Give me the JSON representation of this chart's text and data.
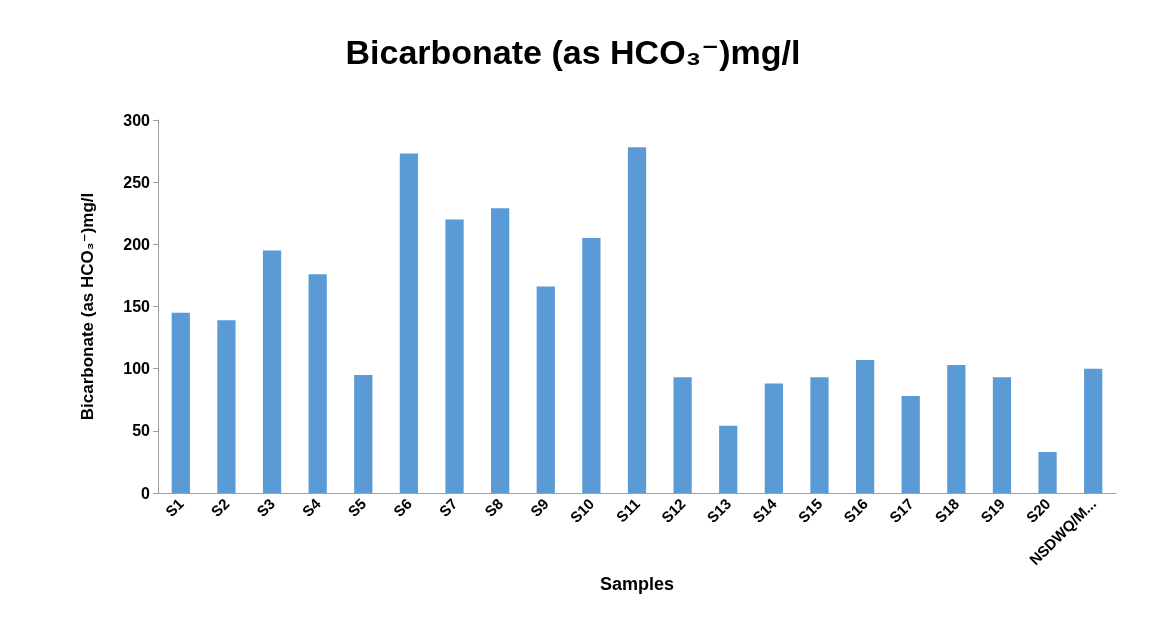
{
  "chart_data": {
    "type": "bar",
    "title": "Bicarbonate (as HCO₃⁻)mg/l",
    "xlabel": "Samples",
    "ylabel": "Bicarbonate (as HCO₃⁻)mg/l",
    "categories": [
      "S1",
      "S2",
      "S3",
      "S4",
      "S5",
      "S6",
      "S7",
      "S8",
      "S9",
      "S10",
      "S11",
      "S12",
      "S13",
      "S14",
      "S15",
      "S16",
      "S17",
      "S18",
      "S19",
      "S20",
      "NSDWQ/M..."
    ],
    "values": [
      145,
      139,
      195,
      176,
      95,
      273,
      220,
      229,
      166,
      205,
      278,
      93,
      54,
      88,
      93,
      107,
      78,
      103,
      93,
      33,
      100
    ],
    "color": "#5b9bd5",
    "ylim": [
      0,
      300
    ],
    "yticks": [
      0,
      50,
      100,
      150,
      200,
      250,
      300
    ],
    "grid": false
  }
}
